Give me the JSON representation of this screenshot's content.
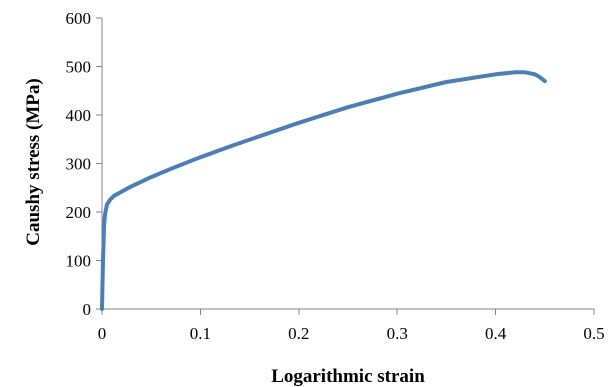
{
  "chart_data": {
    "type": "line",
    "title": "",
    "xlabel": "Logarithmic strain",
    "ylabel": "Caushy stress (MPa)",
    "xlim": [
      0,
      0.5
    ],
    "ylim": [
      0,
      600
    ],
    "xticks": [
      0,
      0.1,
      0.2,
      0.3,
      0.4,
      0.5
    ],
    "xtick_labels": [
      "0",
      "0.1",
      "0.2",
      "0.3",
      "0.4",
      "0.5"
    ],
    "yticks": [
      0,
      100,
      200,
      300,
      400,
      500,
      600
    ],
    "ytick_labels": [
      "0",
      "100",
      "200",
      "300",
      "400",
      "500",
      "600"
    ],
    "grid": false,
    "legend": "none",
    "series": [
      {
        "color": "#4a7ebb",
        "x": [
          0,
          0.001,
          0.002,
          0.003,
          0.005,
          0.008,
          0.012,
          0.02,
          0.03,
          0.05,
          0.07,
          0.1,
          0.13,
          0.16,
          0.2,
          0.25,
          0.3,
          0.35,
          0.4,
          0.42,
          0.43,
          0.44,
          0.445,
          0.45
        ],
        "y": [
          0,
          100,
          170,
          195,
          215,
          225,
          233,
          242,
          253,
          272,
          289,
          313,
          335,
          356,
          384,
          416,
          444,
          468,
          484,
          488,
          488,
          484,
          478,
          470
        ]
      }
    ]
  }
}
